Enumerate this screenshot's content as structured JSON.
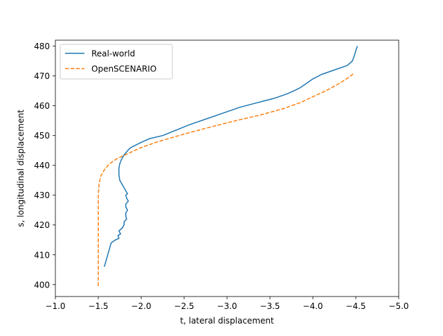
{
  "chart_data": {
    "type": "line",
    "title": "",
    "xlabel": "t, lateral displacement",
    "ylabel": "s, longitudinal displacement",
    "xlim": [
      -1.0,
      -5.0
    ],
    "ylim": [
      396,
      482
    ],
    "x_inverted": true,
    "grid": false,
    "legend_position": "top-left",
    "x_ticks": [
      -1.0,
      -1.5,
      -2.0,
      -2.5,
      -3.0,
      -3.5,
      -4.0,
      -4.5,
      -5.0
    ],
    "x_tick_labels": [
      "−1.0",
      "−1.5",
      "−2.0",
      "−2.5",
      "−3.0",
      "−3.5",
      "−4.0",
      "−4.5",
      "−5.0"
    ],
    "y_ticks": [
      400,
      410,
      420,
      430,
      440,
      450,
      460,
      470,
      480
    ],
    "y_tick_labels": [
      "400",
      "410",
      "420",
      "430",
      "440",
      "450",
      "460",
      "470",
      "480"
    ],
    "series": [
      {
        "name": "Real-world",
        "color": "#1f77b4",
        "style": "solid",
        "x": [
          -1.57,
          -1.59,
          -1.61,
          -1.63,
          -1.65,
          -1.7,
          -1.74,
          -1.73,
          -1.76,
          -1.74,
          -1.78,
          -1.8,
          -1.8,
          -1.83,
          -1.82,
          -1.82,
          -1.84,
          -1.82,
          -1.82,
          -1.85,
          -1.83,
          -1.82,
          -1.84,
          -1.81,
          -1.77,
          -1.75,
          -1.74,
          -1.74,
          -1.75,
          -1.77,
          -1.8,
          -1.83,
          -1.86,
          -1.88,
          -1.95,
          -2.02,
          -2.1,
          -2.25,
          -2.38,
          -2.55,
          -2.75,
          -2.95,
          -3.15,
          -3.35,
          -3.55,
          -3.7,
          -3.78,
          -3.85,
          -3.9,
          -3.95,
          -4.0,
          -4.1,
          -4.25,
          -4.4,
          -4.46,
          -4.48,
          -4.49,
          -4.5,
          -4.51,
          -4.52
        ],
        "y": [
          406,
          408,
          410,
          412,
          414,
          415,
          415.5,
          416.5,
          417,
          418,
          419,
          420,
          421,
          422,
          423,
          424,
          425,
          426,
          427,
          428,
          429,
          430,
          430.5,
          432,
          434,
          435,
          437,
          439,
          440.5,
          442,
          443.5,
          444.5,
          445.5,
          446,
          447,
          448,
          449,
          450,
          451.5,
          453.5,
          455.5,
          457.5,
          459.5,
          461,
          462.5,
          464,
          465,
          466,
          467,
          468,
          469,
          470.5,
          472,
          473.5,
          475,
          476.5,
          477.5,
          478.5,
          479.3,
          480
        ]
      },
      {
        "name": "OpenSCENARIO",
        "color": "#ff7f0e",
        "style": "dashed",
        "x": [
          -1.5,
          -1.5,
          -1.5,
          -1.5,
          -1.5,
          -1.5,
          -1.5,
          -1.51,
          -1.53,
          -1.57,
          -1.63,
          -1.72,
          -1.85,
          -2.0,
          -2.2,
          -2.5,
          -2.8,
          -3.1,
          -3.4,
          -3.65,
          -3.85,
          -4.0,
          -4.15,
          -4.28,
          -4.38,
          -4.45,
          -4.48
        ],
        "y": [
          399.5,
          405,
          410,
          415,
          420,
          425,
          430,
          434,
          436.5,
          438.5,
          440.5,
          442.3,
          444,
          446,
          448,
          450.5,
          452.8,
          455,
          457,
          459,
          461,
          463,
          465,
          467,
          468.8,
          470.2,
          471
        ]
      }
    ]
  }
}
